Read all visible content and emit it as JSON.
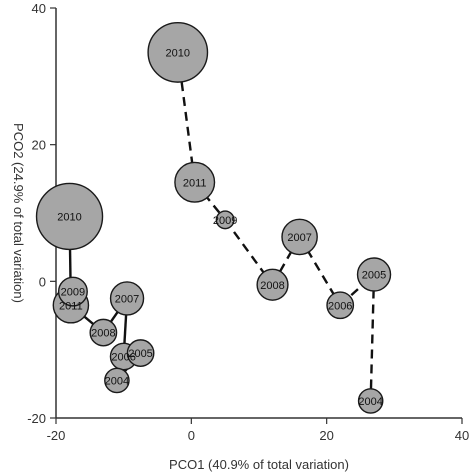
{
  "chart_data": {
    "type": "scatter",
    "title": "",
    "xlabel": "PCO1 (40.9% of total variation)",
    "ylabel": "PCO2 (24.9% of total variation)",
    "xlim": [
      -20,
      40
    ],
    "ylim": [
      -20,
      40
    ],
    "x_ticks": [
      "-20",
      "0",
      "20",
      "40"
    ],
    "y_ticks": [
      "-20",
      "0",
      "20",
      "40"
    ],
    "grid": false,
    "legend": "none",
    "series": [
      {
        "line_style": "solid",
        "points": [
          {
            "label": "2010",
            "x": -18.0,
            "y": 9.5,
            "size": 3.0
          },
          {
            "label": "2009",
            "x": -17.5,
            "y": -1.5,
            "size": 1.3
          },
          {
            "label": "2011",
            "x": -17.8,
            "y": -3.5,
            "size": 1.6
          },
          {
            "label": "2008",
            "x": -13.0,
            "y": -7.5,
            "size": 1.2
          },
          {
            "label": "2007",
            "x": -9.5,
            "y": -2.5,
            "size": 1.5
          },
          {
            "label": "2006",
            "x": -10.0,
            "y": -11.0,
            "size": 1.2
          },
          {
            "label": "2005",
            "x": -7.5,
            "y": -10.5,
            "size": 1.2
          },
          {
            "label": "2004",
            "x": -11.0,
            "y": -14.5,
            "size": 1.1
          }
        ],
        "path": [
          "2010",
          "2011",
          "2008",
          "2007",
          "2006",
          "2004",
          "2005"
        ]
      },
      {
        "line_style": "dashed",
        "points": [
          {
            "label": "2010",
            "x": -2.0,
            "y": 33.5,
            "size": 2.7
          },
          {
            "label": "2011",
            "x": 0.5,
            "y": 14.5,
            "size": 1.8
          },
          {
            "label": "2009",
            "x": 5.0,
            "y": 9.0,
            "size": 0.8
          },
          {
            "label": "2008",
            "x": 12.0,
            "y": -0.5,
            "size": 1.4
          },
          {
            "label": "2007",
            "x": 16.0,
            "y": 6.5,
            "size": 1.6
          },
          {
            "label": "2006",
            "x": 22.0,
            "y": -3.5,
            "size": 1.2
          },
          {
            "label": "2005",
            "x": 27.0,
            "y": 1.0,
            "size": 1.5
          },
          {
            "label": "2004",
            "x": 26.5,
            "y": -17.5,
            "size": 1.1
          }
        ],
        "path": [
          "2010",
          "2011",
          "2009",
          "2008",
          "2007",
          "2006",
          "2005",
          "2004"
        ]
      }
    ],
    "colors": {
      "bubble_fill": "#a6a6a6",
      "bubble_stroke": "#1a1a1a",
      "line": "#111111",
      "axis": "#333333"
    }
  }
}
